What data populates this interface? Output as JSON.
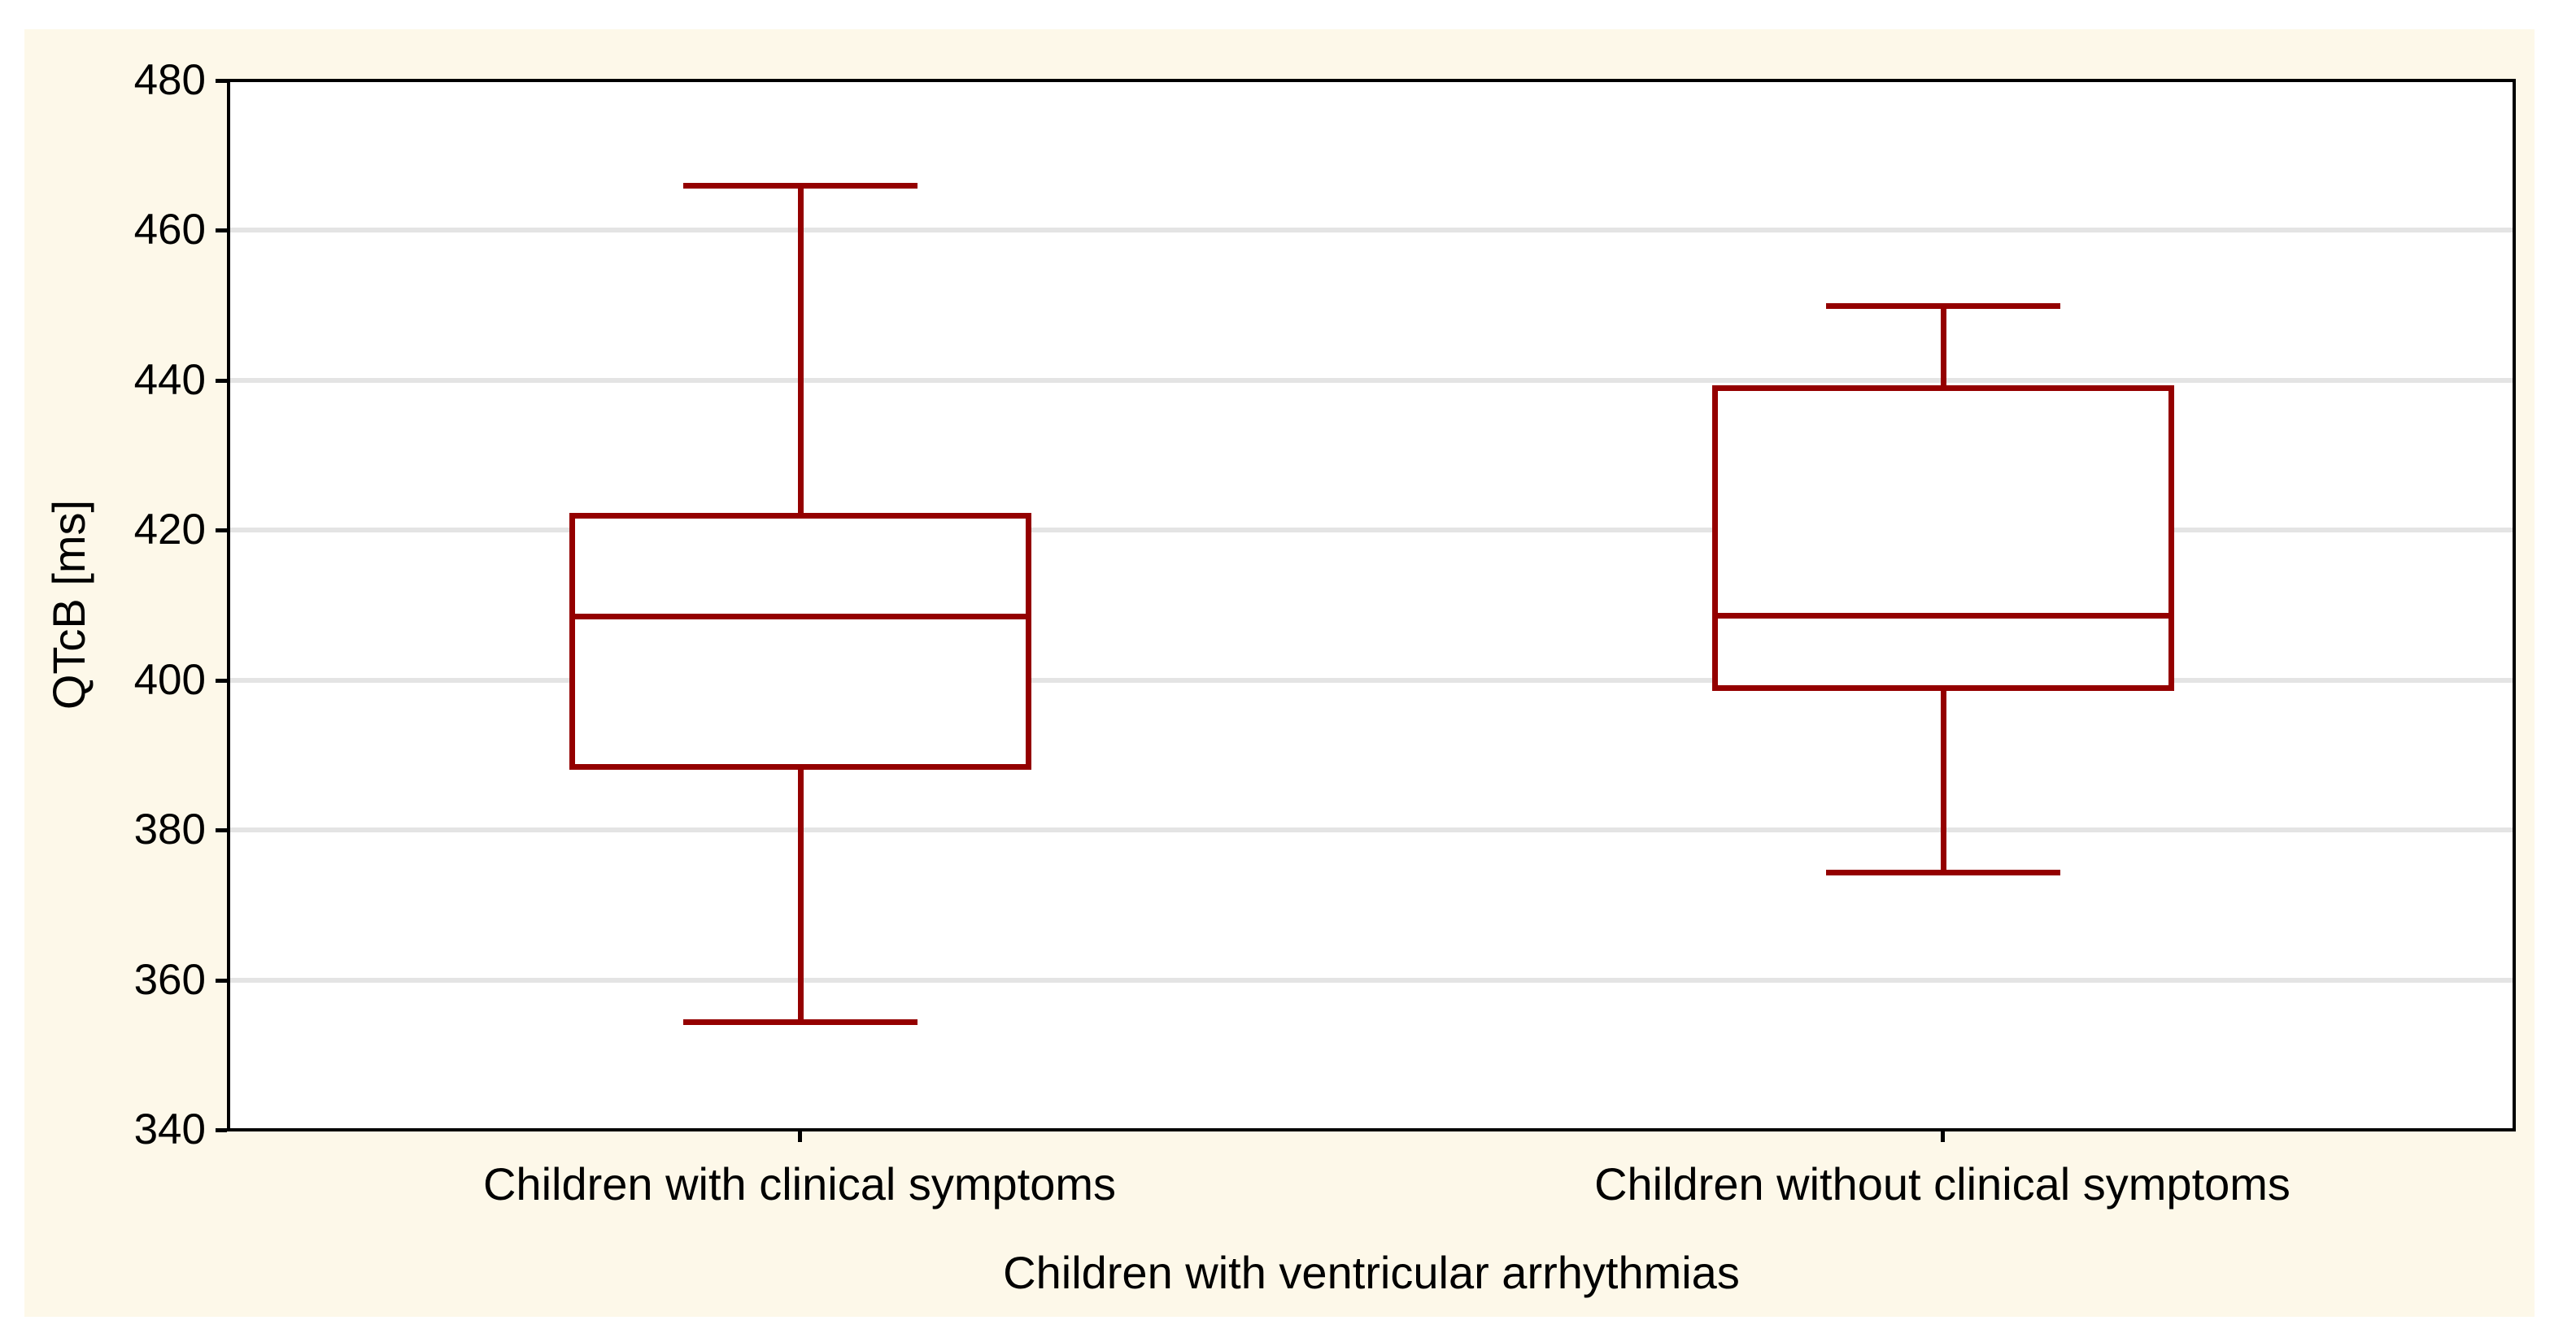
{
  "figure": {
    "background_color": "#FDF8E9",
    "plot_background_color": "#FFFFFF",
    "grid_color": "#E4E4E4",
    "axis_color": "#000000",
    "box_color": "#940000"
  },
  "chart_data": {
    "type": "box",
    "title": "",
    "xlabel": "Children with ventricular arrhythmias",
    "ylabel": "QTcB [ms]",
    "ylim": [
      340,
      480
    ],
    "yticks": [
      340,
      360,
      380,
      400,
      420,
      440,
      460,
      480
    ],
    "grid": "horizontal-only",
    "legend": "none",
    "categories": [
      "Children with clinical symptoms",
      "Children without clinical symptoms"
    ],
    "series": [
      {
        "name": "Children with clinical symptoms",
        "whisker_low": 354.4,
        "q1": 388.5,
        "median": 408.5,
        "q3": 422.0,
        "whisker_high": 466.0
      },
      {
        "name": "Children without clinical symptoms",
        "whisker_low": 374.4,
        "q1": 399.0,
        "median": 408.6,
        "q3": 439.0,
        "whisker_high": 450.0
      }
    ]
  }
}
